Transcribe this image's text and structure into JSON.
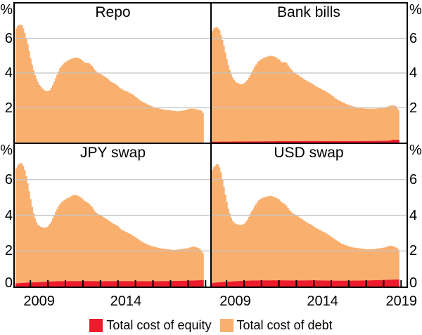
{
  "figure": {
    "background": "#FFFFFF",
    "border_color": "#000000",
    "gridline_color": "#C4C4C4",
    "legend": [
      {
        "label": "Total cost of equity",
        "color": "#ED1C2C"
      },
      {
        "label": "Total cost of debt",
        "color": "#F9AF6D"
      }
    ]
  },
  "chart_data": [
    {
      "type": "area",
      "stacked": true,
      "title": "Repo",
      "panel_position": "top-left",
      "unit": "%",
      "ylim": [
        0,
        8
      ],
      "yticks": [
        6,
        4,
        2
      ],
      "ytick_side": "left",
      "xlim": [
        2008.15,
        2019.27
      ],
      "xtick_marks": [],
      "xtick_labels": [],
      "series": [
        {
          "name": "Total cost of equity",
          "points": [
            [
              2008.15,
              0
            ],
            [
              2018.9,
              0
            ]
          ]
        },
        {
          "name": "Total cost of debt",
          "stack_top_points": [
            [
              2008.15,
              6.5
            ],
            [
              2008.3,
              6.75
            ],
            [
              2008.5,
              6.8
            ],
            [
              2008.6,
              6.6
            ],
            [
              2008.75,
              6.1
            ],
            [
              2008.9,
              5.5
            ],
            [
              2009.0,
              4.95
            ],
            [
              2009.15,
              4.3
            ],
            [
              2009.3,
              3.8
            ],
            [
              2009.5,
              3.35
            ],
            [
              2009.7,
              3.1
            ],
            [
              2009.9,
              2.95
            ],
            [
              2010.1,
              3.0
            ],
            [
              2010.3,
              3.35
            ],
            [
              2010.5,
              3.85
            ],
            [
              2010.7,
              4.3
            ],
            [
              2010.9,
              4.55
            ],
            [
              2011.1,
              4.7
            ],
            [
              2011.3,
              4.8
            ],
            [
              2011.55,
              4.9
            ],
            [
              2011.8,
              4.85
            ],
            [
              2012.0,
              4.7
            ],
            [
              2012.15,
              4.55
            ],
            [
              2012.3,
              4.6
            ],
            [
              2012.5,
              4.45
            ],
            [
              2012.7,
              4.15
            ],
            [
              2012.9,
              4.0
            ],
            [
              2013.1,
              3.9
            ],
            [
              2013.4,
              3.7
            ],
            [
              2013.6,
              3.5
            ],
            [
              2013.9,
              3.35
            ],
            [
              2014.1,
              3.15
            ],
            [
              2014.35,
              3.0
            ],
            [
              2014.6,
              2.9
            ],
            [
              2014.8,
              2.8
            ],
            [
              2015.0,
              2.65
            ],
            [
              2015.3,
              2.4
            ],
            [
              2015.6,
              2.25
            ],
            [
              2015.9,
              2.1
            ],
            [
              2016.2,
              2.0
            ],
            [
              2016.6,
              1.9
            ],
            [
              2017.0,
              1.85
            ],
            [
              2017.4,
              1.8
            ],
            [
              2017.8,
              1.85
            ],
            [
              2018.1,
              1.95
            ],
            [
              2018.35,
              1.95
            ],
            [
              2018.55,
              1.9
            ],
            [
              2018.75,
              1.85
            ],
            [
              2018.9,
              1.65
            ]
          ]
        }
      ]
    },
    {
      "type": "area",
      "stacked": true,
      "title": "Bank bills",
      "panel_position": "top-right",
      "unit": "%",
      "ylim": [
        0,
        8
      ],
      "yticks": [
        6,
        4,
        2
      ],
      "ytick_side": "right",
      "xlim": [
        2008.15,
        2019.27
      ],
      "xtick_marks": [],
      "xtick_labels": [],
      "series": [
        {
          "name": "Total cost of equity",
          "points": [
            [
              2008.15,
              0.05
            ],
            [
              2009.5,
              0.06
            ],
            [
              2012.0,
              0.08
            ],
            [
              2014.0,
              0.09
            ],
            [
              2015.0,
              0.08
            ],
            [
              2017.0,
              0.09
            ],
            [
              2018.3,
              0.1
            ],
            [
              2018.5,
              0.16
            ],
            [
              2018.9,
              0.16
            ]
          ]
        },
        {
          "name": "Total cost of debt",
          "stack_top_points": [
            [
              2008.15,
              6.35
            ],
            [
              2008.3,
              6.6
            ],
            [
              2008.45,
              6.65
            ],
            [
              2008.6,
              6.5
            ],
            [
              2008.75,
              6.0
            ],
            [
              2008.9,
              5.4
            ],
            [
              2009.0,
              4.9
            ],
            [
              2009.15,
              4.3
            ],
            [
              2009.3,
              3.85
            ],
            [
              2009.5,
              3.5
            ],
            [
              2009.7,
              3.4
            ],
            [
              2009.85,
              3.35
            ],
            [
              2010.0,
              3.4
            ],
            [
              2010.2,
              3.6
            ],
            [
              2010.4,
              3.95
            ],
            [
              2010.6,
              4.35
            ],
            [
              2010.8,
              4.65
            ],
            [
              2011.0,
              4.8
            ],
            [
              2011.2,
              4.9
            ],
            [
              2011.5,
              5.0
            ],
            [
              2011.75,
              4.95
            ],
            [
              2012.0,
              4.8
            ],
            [
              2012.2,
              4.6
            ],
            [
              2012.4,
              4.65
            ],
            [
              2012.6,
              4.35
            ],
            [
              2012.8,
              4.1
            ],
            [
              2013.0,
              3.95
            ],
            [
              2013.3,
              3.75
            ],
            [
              2013.6,
              3.55
            ],
            [
              2013.9,
              3.4
            ],
            [
              2014.1,
              3.25
            ],
            [
              2014.4,
              3.1
            ],
            [
              2014.7,
              2.95
            ],
            [
              2015.0,
              2.75
            ],
            [
              2015.3,
              2.5
            ],
            [
              2015.6,
              2.35
            ],
            [
              2015.9,
              2.2
            ],
            [
              2016.2,
              2.1
            ],
            [
              2016.6,
              2.0
            ],
            [
              2017.0,
              1.95
            ],
            [
              2017.5,
              1.95
            ],
            [
              2018.0,
              2.0
            ],
            [
              2018.3,
              2.1
            ],
            [
              2018.5,
              2.15
            ],
            [
              2018.7,
              2.1
            ],
            [
              2018.9,
              1.8
            ]
          ]
        }
      ]
    },
    {
      "type": "area",
      "stacked": true,
      "title": "JPY swap",
      "panel_position": "bottom-left",
      "unit": "%",
      "ylim": [
        0,
        8
      ],
      "yticks": [
        6,
        4,
        2,
        0
      ],
      "ytick_side": "left",
      "xlim": [
        2008.15,
        2019.27
      ],
      "xtick_marks": [
        2009,
        2010,
        2011,
        2012,
        2013,
        2014,
        2015,
        2016,
        2017,
        2018,
        2019
      ],
      "xtick_labels": [
        {
          "text": "2009",
          "x": 2009.5
        },
        {
          "text": "2014",
          "x": 2014.45
        }
      ],
      "series": [
        {
          "name": "Total cost of equity",
          "points": [
            [
              2008.15,
              0.18
            ],
            [
              2008.8,
              0.22
            ],
            [
              2009.5,
              0.25
            ],
            [
              2010.5,
              0.3
            ],
            [
              2012.0,
              0.31
            ],
            [
              2013.0,
              0.3
            ],
            [
              2014.0,
              0.31
            ],
            [
              2015.0,
              0.3
            ],
            [
              2016.0,
              0.3
            ],
            [
              2017.0,
              0.31
            ],
            [
              2018.0,
              0.33
            ],
            [
              2018.9,
              0.36
            ]
          ]
        },
        {
          "name": "Total cost of debt",
          "stack_top_points": [
            [
              2008.15,
              6.55
            ],
            [
              2008.3,
              6.85
            ],
            [
              2008.5,
              6.95
            ],
            [
              2008.65,
              6.7
            ],
            [
              2008.8,
              6.1
            ],
            [
              2008.95,
              5.3
            ],
            [
              2009.1,
              4.5
            ],
            [
              2009.25,
              3.9
            ],
            [
              2009.4,
              3.5
            ],
            [
              2009.6,
              3.35
            ],
            [
              2009.8,
              3.3
            ],
            [
              2010.0,
              3.35
            ],
            [
              2010.2,
              3.65
            ],
            [
              2010.4,
              4.1
            ],
            [
              2010.6,
              4.5
            ],
            [
              2010.8,
              4.75
            ],
            [
              2011.0,
              4.9
            ],
            [
              2011.2,
              5.0
            ],
            [
              2011.5,
              5.15
            ],
            [
              2011.7,
              5.1
            ],
            [
              2011.9,
              5.0
            ],
            [
              2012.1,
              4.8
            ],
            [
              2012.3,
              4.7
            ],
            [
              2012.5,
              4.5
            ],
            [
              2012.7,
              4.2
            ],
            [
              2012.9,
              4.05
            ],
            [
              2013.1,
              3.95
            ],
            [
              2013.4,
              3.75
            ],
            [
              2013.7,
              3.55
            ],
            [
              2014.0,
              3.4
            ],
            [
              2014.2,
              3.2
            ],
            [
              2014.5,
              3.05
            ],
            [
              2014.8,
              2.9
            ],
            [
              2015.1,
              2.7
            ],
            [
              2015.4,
              2.5
            ],
            [
              2015.7,
              2.35
            ],
            [
              2016.0,
              2.25
            ],
            [
              2016.4,
              2.15
            ],
            [
              2016.8,
              2.1
            ],
            [
              2017.2,
              2.05
            ],
            [
              2017.6,
              2.1
            ],
            [
              2018.0,
              2.15
            ],
            [
              2018.3,
              2.25
            ],
            [
              2018.5,
              2.2
            ],
            [
              2018.7,
              2.1
            ],
            [
              2018.9,
              1.8
            ]
          ]
        }
      ]
    },
    {
      "type": "area",
      "stacked": true,
      "title": "USD swap",
      "panel_position": "bottom-right",
      "unit": "%",
      "ylim": [
        0,
        8
      ],
      "yticks": [
        6,
        4,
        2,
        0
      ],
      "ytick_side": "right",
      "xlim": [
        2008.15,
        2019.27
      ],
      "xtick_marks": [
        2009,
        2010,
        2011,
        2012,
        2013,
        2014,
        2015,
        2016,
        2017,
        2018,
        2019
      ],
      "xtick_labels": [
        {
          "text": "2009",
          "x": 2009.5
        },
        {
          "text": "2014",
          "x": 2014.5
        },
        {
          "text": "2019",
          "x": 2019.02
        }
      ],
      "series": [
        {
          "name": "Total cost of equity",
          "points": [
            [
              2008.15,
              0.2
            ],
            [
              2008.8,
              0.26
            ],
            [
              2009.5,
              0.3
            ],
            [
              2010.5,
              0.34
            ],
            [
              2012.0,
              0.35
            ],
            [
              2013.0,
              0.34
            ],
            [
              2014.0,
              0.35
            ],
            [
              2015.0,
              0.33
            ],
            [
              2016.0,
              0.33
            ],
            [
              2017.0,
              0.34
            ],
            [
              2018.0,
              0.37
            ],
            [
              2018.9,
              0.4
            ]
          ]
        },
        {
          "name": "Total cost of debt",
          "stack_top_points": [
            [
              2008.15,
              6.45
            ],
            [
              2008.3,
              6.75
            ],
            [
              2008.5,
              6.9
            ],
            [
              2008.65,
              6.6
            ],
            [
              2008.8,
              5.9
            ],
            [
              2008.95,
              5.1
            ],
            [
              2009.1,
              4.4
            ],
            [
              2009.25,
              3.9
            ],
            [
              2009.4,
              3.6
            ],
            [
              2009.6,
              3.5
            ],
            [
              2009.8,
              3.45
            ],
            [
              2010.0,
              3.5
            ],
            [
              2010.2,
              3.75
            ],
            [
              2010.4,
              4.15
            ],
            [
              2010.6,
              4.5
            ],
            [
              2010.8,
              4.8
            ],
            [
              2011.0,
              4.95
            ],
            [
              2011.3,
              5.05
            ],
            [
              2011.55,
              5.1
            ],
            [
              2011.8,
              5.0
            ],
            [
              2012.0,
              4.9
            ],
            [
              2012.2,
              4.7
            ],
            [
              2012.4,
              4.6
            ],
            [
              2012.6,
              4.3
            ],
            [
              2012.8,
              4.1
            ],
            [
              2013.0,
              4.0
            ],
            [
              2013.3,
              3.8
            ],
            [
              2013.6,
              3.6
            ],
            [
              2013.9,
              3.45
            ],
            [
              2014.1,
              3.3
            ],
            [
              2014.4,
              3.15
            ],
            [
              2014.7,
              3.0
            ],
            [
              2015.0,
              2.8
            ],
            [
              2015.3,
              2.6
            ],
            [
              2015.6,
              2.4
            ],
            [
              2015.9,
              2.3
            ],
            [
              2016.2,
              2.2
            ],
            [
              2016.6,
              2.15
            ],
            [
              2017.0,
              2.1
            ],
            [
              2017.4,
              2.1
            ],
            [
              2017.8,
              2.15
            ],
            [
              2018.1,
              2.2
            ],
            [
              2018.35,
              2.3
            ],
            [
              2018.6,
              2.25
            ],
            [
              2018.8,
              2.15
            ],
            [
              2018.9,
              2.0
            ]
          ]
        }
      ]
    }
  ]
}
